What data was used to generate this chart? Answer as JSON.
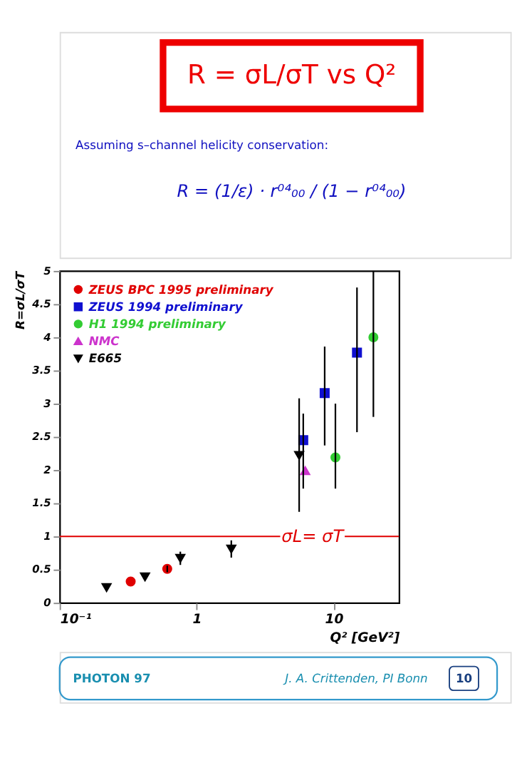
{
  "chart_data": {
    "type": "scatter",
    "title": "R = σL/σT vs Q²",
    "subtitle": "Assuming s–channel helicity conservation:",
    "xlabel": "Q² [GeV²]",
    "ylabel": "R=σL/σT",
    "log": "x",
    "legend": "top left",
    "xlim": [
      0.1,
      30
    ],
    "xticks": [
      {
        "value": 0.1,
        "label": "10⁻¹"
      },
      1,
      10
    ],
    "ylim": [
      0,
      5
    ],
    "yticks": [
      0,
      0.5,
      1,
      1.5,
      2,
      2.5,
      3,
      3.5,
      4,
      4.5,
      5
    ],
    "ref_lines": [
      {
        "axis": "y",
        "value": 1,
        "label": "σL= σT",
        "color": "#e00000"
      }
    ],
    "annotations": [
      "R = (1/ε) · r⁰⁴₀₀ / (1 − r⁰⁴₀₀)",
      "PHOTON 97",
      "J. A. Crittenden, PI Bonn",
      "10"
    ],
    "series": [
      {
        "name": "ZEUS BPC 1995 preliminary",
        "color": "#e00000",
        "marker": "circle",
        "x": [
          0.33,
          0.61
        ],
        "values": [
          0.32,
          0.51
        ],
        "errors": [
          null,
          0.05
        ]
      },
      {
        "name": "ZEUS 1994 preliminary",
        "color": "#1010d0",
        "marker": "square",
        "x": [
          6.0,
          8.6,
          14.8
        ],
        "values": [
          2.45,
          3.16,
          3.77
        ],
        "errors": [
          [
            1.72,
            2.85
          ],
          [
            2.37,
            3.86
          ],
          [
            2.57,
            4.75
          ]
        ]
      },
      {
        "name": "H1 1994 preliminary",
        "color": "#33cc33",
        "marker": "circle",
        "x": [
          10.3,
          19.5
        ],
        "values": [
          2.19,
          4.0
        ],
        "errors": [
          [
            1.72,
            3.0
          ],
          [
            2.8,
            5.0
          ]
        ]
      },
      {
        "name": "NMC",
        "color": "#cc33cc",
        "marker": "triangle",
        "x": [
          6.2
        ],
        "values": [
          1.99
        ]
      },
      {
        "name": "E665",
        "color": "#000000",
        "marker": "triangle-down",
        "x": [
          0.22,
          0.42,
          0.76,
          1.79,
          5.6
        ],
        "values": [
          0.23,
          0.39,
          0.67,
          0.81,
          2.22
        ],
        "errors": [
          0.05,
          0.05,
          0.1,
          0.13,
          [
            1.37,
            3.08
          ]
        ]
      }
    ]
  }
}
